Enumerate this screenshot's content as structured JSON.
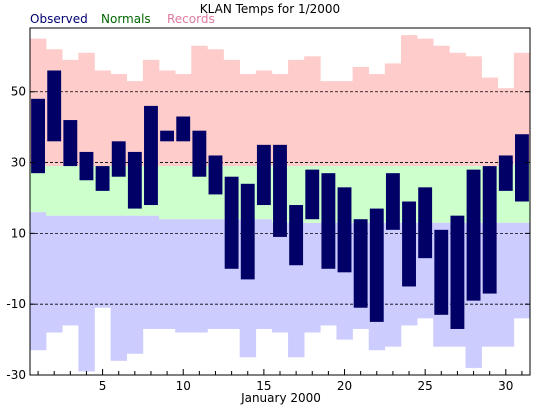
{
  "chart_data": {
    "type": "bar",
    "title": "KLAN Temps for 1/2000",
    "xlabel": "January 2000",
    "ylabel": "",
    "legend": [
      {
        "name": "Observed",
        "color": "#000070"
      },
      {
        "name": "Normals",
        "color": "#006600"
      },
      {
        "name": "Records",
        "color": "#e07aa0"
      }
    ],
    "legend_placement": "top-left",
    "xlim": [
      0.5,
      31.5
    ],
    "ylim": [
      -30,
      68
    ],
    "x_ticks": [
      5,
      10,
      15,
      20,
      25,
      30
    ],
    "y_ticks": [
      -30,
      -10,
      10,
      30,
      50
    ],
    "grid": "horizontal dashed",
    "x": [
      1,
      2,
      3,
      4,
      5,
      6,
      7,
      8,
      9,
      10,
      11,
      12,
      13,
      14,
      15,
      16,
      17,
      18,
      19,
      20,
      21,
      22,
      23,
      24,
      25,
      26,
      27,
      28,
      29,
      30,
      31
    ],
    "series": [
      {
        "name": "Records",
        "color": "#ffcccc",
        "high": [
          65,
          62,
          59,
          61,
          56,
          55,
          53,
          59,
          56,
          55,
          63,
          62,
          59,
          55,
          56,
          55,
          59,
          60,
          53,
          53,
          57,
          55,
          58,
          66,
          65,
          63,
          61,
          60,
          54,
          51,
          61
        ],
        "low": [
          -23,
          -18,
          -16,
          -29,
          -11,
          -26,
          -24,
          -17,
          -17,
          -18,
          -18,
          -17,
          -17,
          -25,
          -17,
          -18,
          -25,
          -18,
          -16,
          -20,
          -17,
          -23,
          -22,
          -16,
          -14,
          -22,
          -22,
          -28,
          -22,
          -22,
          -14
        ]
      },
      {
        "name": "Normals",
        "color": "#ccffcc",
        "high": [
          29,
          29,
          29,
          29,
          29,
          29,
          29,
          29,
          29,
          29,
          29,
          29,
          29,
          29,
          29,
          29,
          29,
          29,
          29,
          29,
          29,
          29,
          29,
          29,
          29,
          29,
          29,
          29,
          29,
          29,
          30
        ],
        "low": [
          16,
          15,
          15,
          15,
          15,
          15,
          15,
          15,
          14,
          14,
          14,
          14,
          14,
          14,
          14,
          13,
          13,
          13,
          13,
          13,
          13,
          13,
          13,
          13,
          13,
          13,
          13,
          13,
          13,
          13,
          13
        ]
      },
      {
        "name": "Observed",
        "color": "#000066",
        "high": [
          48,
          56,
          42,
          33,
          29,
          36,
          33,
          46,
          39,
          43,
          39,
          32,
          26,
          24,
          35,
          35,
          18,
          28,
          27,
          23,
          14,
          17,
          27,
          19,
          23,
          11,
          15,
          28,
          29,
          32,
          38
        ],
        "low": [
          27,
          36,
          29,
          25,
          22,
          26,
          17,
          18,
          36,
          36,
          26,
          21,
          0,
          -3,
          18,
          9,
          1,
          14,
          0,
          -1,
          -11,
          -15,
          11,
          -5,
          3,
          -13,
          -17,
          -9,
          -7,
          22,
          19
        ]
      }
    ]
  }
}
